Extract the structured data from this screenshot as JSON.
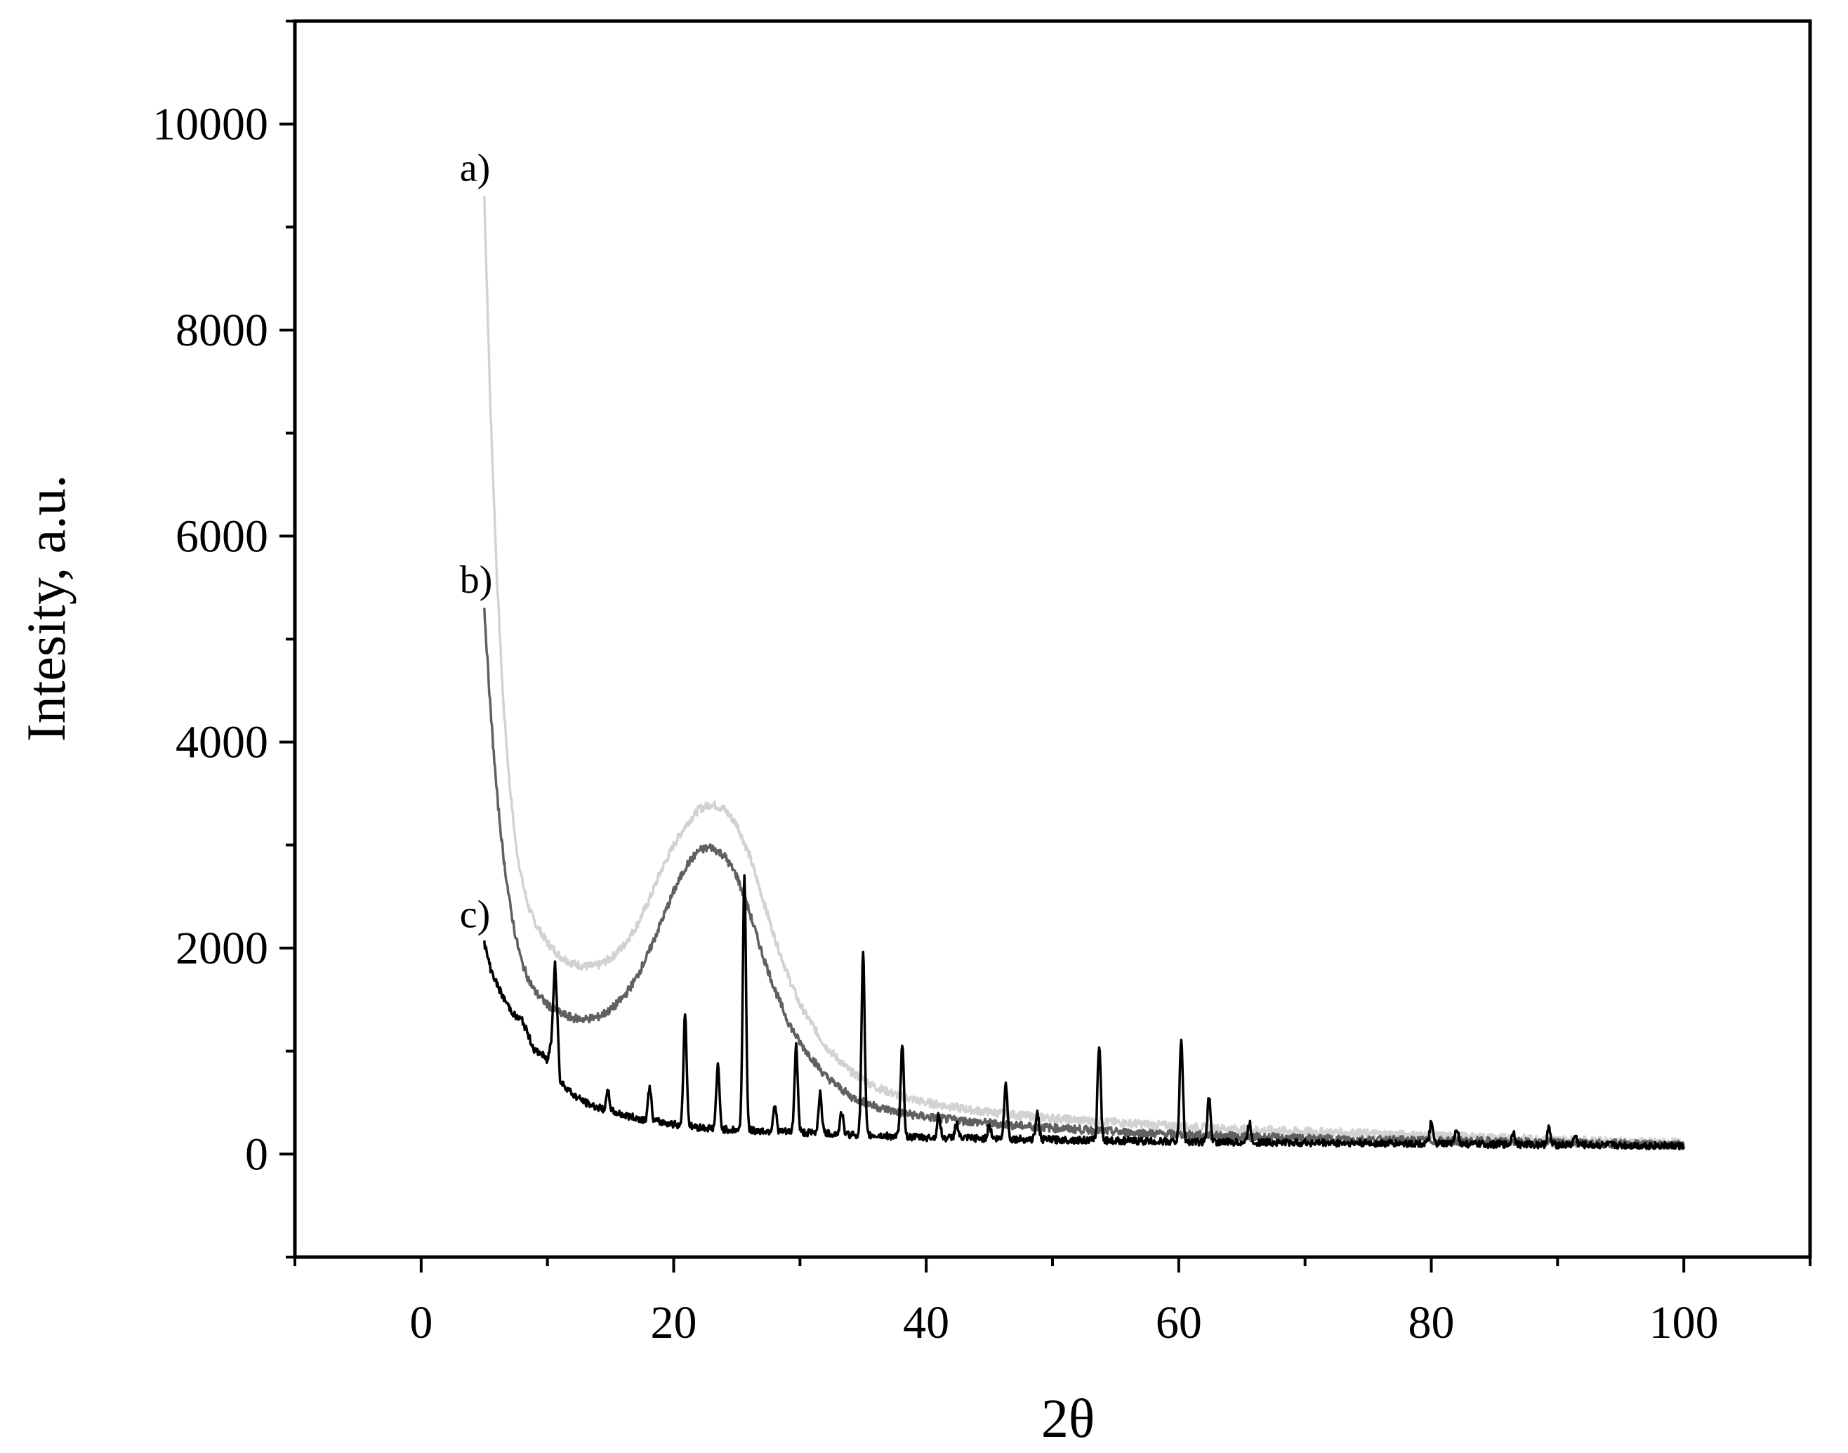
{
  "chart_data": {
    "type": "line",
    "xlabel": "2θ",
    "ylabel": "Intesity, a.u.",
    "xlim": [
      -10,
      110
    ],
    "ylim": [
      -1000,
      11000
    ],
    "xticks": [
      0,
      20,
      40,
      60,
      80,
      100
    ],
    "yticks": [
      0,
      2000,
      4000,
      6000,
      8000,
      10000
    ],
    "xtick_labels": [
      "0",
      "20",
      "40",
      "60",
      "80",
      "100"
    ],
    "ytick_labels": [
      "0",
      "2000",
      "4000",
      "6000",
      "8000",
      "10000"
    ],
    "grid": false,
    "legend": "none",
    "series": [
      {
        "name": "a)",
        "color": "#d2d2d2",
        "x": [
          5,
          5.5,
          6,
          6.5,
          7,
          7.5,
          8,
          8.5,
          9,
          10,
          11,
          12,
          13,
          14,
          15,
          16,
          17,
          18,
          19,
          20,
          21,
          22,
          23,
          24,
          25,
          26,
          27,
          28,
          29,
          30,
          32,
          34,
          36,
          38,
          40,
          44,
          48,
          52,
          56,
          60,
          65,
          70,
          75,
          80,
          85,
          90,
          95,
          100
        ],
        "y": [
          9300,
          7200,
          5600,
          4400,
          3600,
          3000,
          2650,
          2400,
          2250,
          2050,
          1920,
          1850,
          1820,
          1830,
          1900,
          2020,
          2200,
          2450,
          2750,
          3000,
          3200,
          3350,
          3400,
          3350,
          3200,
          2900,
          2500,
          2100,
          1750,
          1450,
          1050,
          800,
          650,
          560,
          500,
          420,
          370,
          330,
          300,
          270,
          240,
          220,
          200,
          180,
          160,
          140,
          120,
          110
        ]
      },
      {
        "name": "b)",
        "color": "#606060",
        "x": [
          5,
          5.5,
          6,
          6.5,
          7,
          7.5,
          8,
          8.5,
          9,
          10,
          11,
          12,
          13,
          14,
          15,
          16,
          17,
          18,
          19,
          20,
          21,
          22,
          23,
          24,
          25,
          26,
          27,
          28,
          29,
          30,
          32,
          34,
          36,
          38,
          40,
          44,
          48,
          52,
          56,
          60,
          65,
          70,
          75,
          80,
          85,
          90,
          95,
          100
        ],
        "y": [
          5300,
          4300,
          3500,
          2900,
          2450,
          2100,
          1850,
          1700,
          1580,
          1450,
          1370,
          1320,
          1310,
          1330,
          1400,
          1520,
          1700,
          1950,
          2250,
          2550,
          2800,
          2950,
          2980,
          2900,
          2700,
          2350,
          1950,
          1600,
          1300,
          1080,
          760,
          560,
          460,
          400,
          360,
          310,
          270,
          240,
          210,
          190,
          170,
          150,
          140,
          130,
          120,
          110,
          100,
          90
        ]
      },
      {
        "name": "c)",
        "color": "#000000",
        "peaks": [
          {
            "x": 10.6,
            "y": 1900
          },
          {
            "x": 14.8,
            "y": 600
          },
          {
            "x": 18.1,
            "y": 650
          },
          {
            "x": 20.9,
            "y": 1350
          },
          {
            "x": 23.5,
            "y": 850
          },
          {
            "x": 25.6,
            "y": 2700
          },
          {
            "x": 28.0,
            "y": 480
          },
          {
            "x": 29.7,
            "y": 1050
          },
          {
            "x": 31.6,
            "y": 600
          },
          {
            "x": 33.3,
            "y": 400
          },
          {
            "x": 35.0,
            "y": 1950
          },
          {
            "x": 38.1,
            "y": 1050
          },
          {
            "x": 41.0,
            "y": 380
          },
          {
            "x": 42.4,
            "y": 300
          },
          {
            "x": 45.0,
            "y": 280
          },
          {
            "x": 46.3,
            "y": 700
          },
          {
            "x": 48.8,
            "y": 400
          },
          {
            "x": 53.7,
            "y": 1050
          },
          {
            "x": 60.2,
            "y": 1100
          },
          {
            "x": 62.4,
            "y": 550
          },
          {
            "x": 65.6,
            "y": 300
          },
          {
            "x": 80.0,
            "y": 300
          },
          {
            "x": 82.0,
            "y": 260
          },
          {
            "x": 86.5,
            "y": 220
          },
          {
            "x": 89.3,
            "y": 250
          },
          {
            "x": 91.4,
            "y": 180
          }
        ],
        "x": [
          5,
          5.5,
          6,
          6.5,
          7,
          7.5,
          8,
          8.5,
          9,
          9.5,
          10,
          10.3,
          10.6,
          11,
          11.5,
          12,
          13,
          14,
          15,
          16,
          17,
          18,
          19,
          20,
          22,
          24,
          26,
          28,
          30,
          32,
          34,
          36,
          38,
          40,
          45,
          50,
          55,
          60,
          65,
          70,
          75,
          80,
          85,
          90,
          95,
          100
        ],
        "y": [
          2050,
          1800,
          1650,
          1520,
          1420,
          1330,
          1300,
          1150,
          1000,
          980,
          900,
          1100,
          1900,
          700,
          650,
          580,
          500,
          450,
          420,
          380,
          350,
          330,
          310,
          290,
          260,
          240,
          230,
          220,
          210,
          200,
          190,
          180,
          170,
          160,
          150,
          140,
          130,
          120,
          115,
          110,
          105,
          100,
          95,
          90,
          85,
          80
        ]
      }
    ],
    "annotations": [
      {
        "text": "a)",
        "x": 5,
        "y": 9300
      },
      {
        "text": "b)",
        "x": 5,
        "y": 5300
      },
      {
        "text": "c)",
        "x": 5,
        "y": 2050
      }
    ]
  }
}
